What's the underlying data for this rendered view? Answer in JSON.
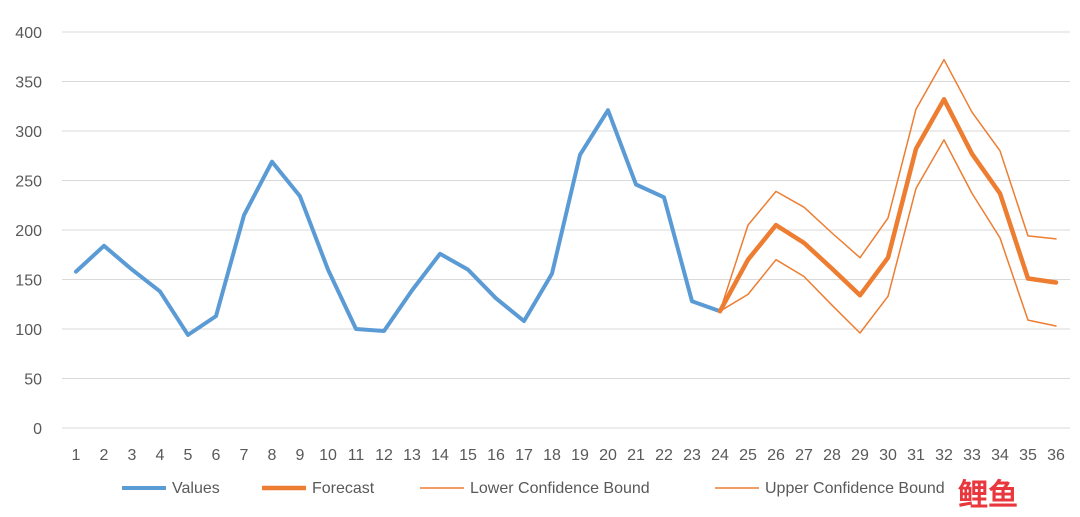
{
  "chart_data": {
    "type": "line",
    "ylim": [
      0,
      400
    ],
    "yticks": [
      0,
      50,
      100,
      150,
      200,
      250,
      300,
      350,
      400
    ],
    "categories": [
      "1",
      "2",
      "3",
      "4",
      "5",
      "6",
      "7",
      "8",
      "9",
      "10",
      "11",
      "12",
      "13",
      "14",
      "15",
      "16",
      "17",
      "18",
      "19",
      "20",
      "21",
      "22",
      "23",
      "24",
      "25",
      "26",
      "27",
      "28",
      "29",
      "30",
      "31",
      "32",
      "33",
      "34",
      "35",
      "36"
    ],
    "grid": true,
    "legend_position": "bottom",
    "series": [
      {
        "name": "Values",
        "color": "#5b9bd5",
        "x": [
          1,
          2,
          3,
          4,
          5,
          6,
          7,
          8,
          9,
          10,
          11,
          12,
          13,
          14,
          15,
          16,
          17,
          18,
          19,
          20,
          21,
          22,
          23,
          24
        ],
        "values": [
          158,
          184,
          160,
          138,
          94,
          113,
          215,
          269,
          234,
          160,
          100,
          98,
          139,
          176,
          160,
          131,
          108,
          156,
          276,
          321,
          246,
          233,
          128,
          118
        ]
      },
      {
        "name": "Forecast",
        "color": "#ed7d31",
        "x": [
          24,
          25,
          26,
          27,
          28,
          29,
          30,
          31,
          32,
          33,
          34,
          35,
          36
        ],
        "values": [
          118,
          170,
          205,
          187,
          161,
          134,
          172,
          282,
          332,
          277,
          237,
          151,
          147
        ]
      },
      {
        "name": "Lower Confidence Bound",
        "color": "#ed7d31",
        "x": [
          24,
          25,
          26,
          27,
          28,
          29,
          30,
          31,
          32,
          33,
          34,
          35,
          36
        ],
        "values": [
          118,
          135,
          170,
          153,
          124,
          96,
          133,
          242,
          291,
          237,
          192,
          109,
          103
        ]
      },
      {
        "name": "Upper Confidence Bound",
        "color": "#ed7d31",
        "x": [
          24,
          25,
          26,
          27,
          28,
          29,
          30,
          31,
          32,
          33,
          34,
          35,
          36
        ],
        "values": [
          118,
          205,
          239,
          223,
          197,
          172,
          212,
          322,
          372,
          319,
          280,
          194,
          191
        ]
      }
    ]
  },
  "watermark": {
    "text": "鲤鱼"
  }
}
